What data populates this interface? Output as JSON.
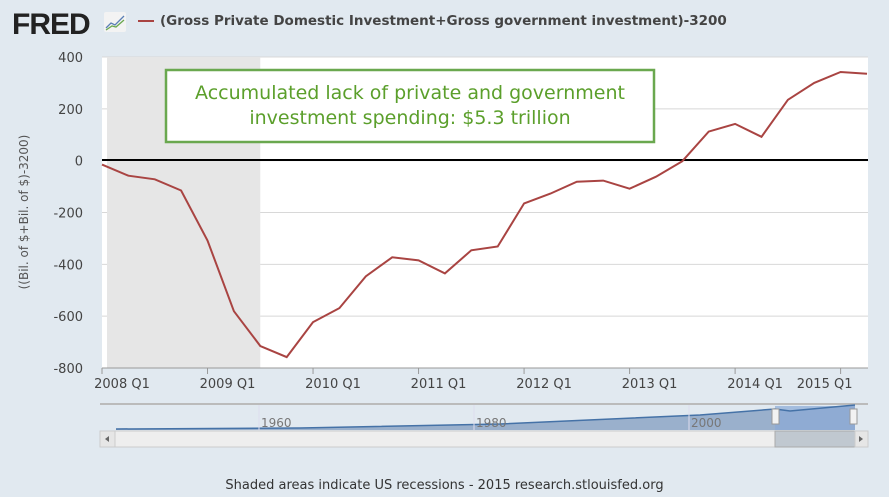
{
  "header": {
    "logo": "FRED",
    "title": "(Gross Private Domestic Investment+Gross government investment)-3200"
  },
  "footer": "Shaded areas indicate US recessions - 2015 research.stlouisfed.org",
  "annotation": [
    "Accumulated lack of private and government",
    "investment spending: $5.3 trillion"
  ],
  "navigator": {
    "labels": [
      "1960",
      "1980",
      "2000"
    ]
  },
  "chart_data": {
    "type": "line",
    "title": "(Gross Private Domestic Investment+Gross government investment)-3200",
    "ylabel": "((Bil. of $+Bil. of $)-3200)",
    "ylim": [
      -800,
      400
    ],
    "yticks": [
      400,
      200,
      0,
      -200,
      -400,
      -600,
      -800
    ],
    "xticks": [
      "2008 Q1",
      "2009 Q1",
      "2010 Q1",
      "2011 Q1",
      "2012 Q1",
      "2013 Q1",
      "2014 Q1",
      "2015 Q1"
    ],
    "recession": {
      "start": 2008.0,
      "end": 2009.5
    },
    "line_color": "#a94442",
    "x": [
      2008.0,
      2008.25,
      2008.5,
      2008.75,
      2009.0,
      2009.25,
      2009.5,
      2009.75,
      2010.0,
      2010.25,
      2010.5,
      2010.75,
      2011.0,
      2011.25,
      2011.5,
      2011.75,
      2012.0,
      2012.25,
      2012.5,
      2012.75,
      2013.0,
      2013.25,
      2013.5,
      2013.75,
      2014.0,
      2014.25,
      2014.5,
      2014.75,
      2015.0,
      2015.25
    ],
    "values": [
      -15,
      -58,
      -72,
      -115,
      -308,
      -581,
      -715,
      -758,
      -623,
      -569,
      -446,
      -373,
      -385,
      -435,
      -346,
      -331,
      -165,
      -127,
      -81,
      -77,
      -108,
      -62,
      -2,
      112,
      142,
      92,
      235,
      300,
      342,
      335
    ]
  }
}
